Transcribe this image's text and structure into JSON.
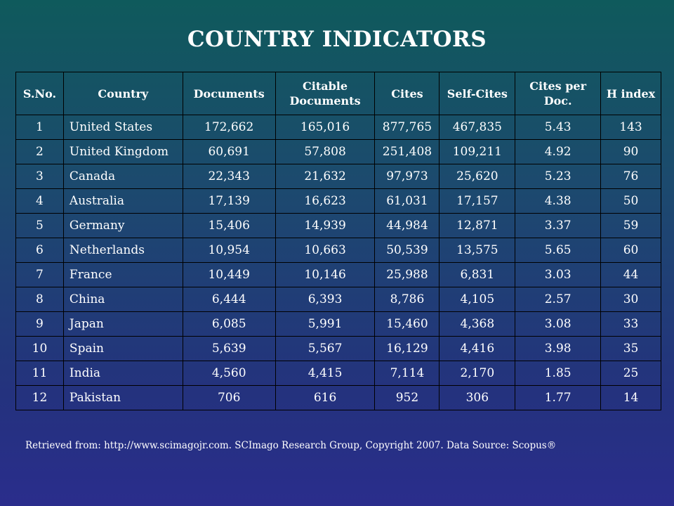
{
  "title": "COUNTRY INDICATORS",
  "table": {
    "headers": [
      "S.No.",
      "Country",
      "Documents",
      "Citable Documents",
      "Cites",
      "Self-Cites",
      "Cites per Doc.",
      "H index"
    ],
    "rows": [
      [
        "1",
        "United States",
        "172,662",
        "165,016",
        "877,765",
        "467,835",
        "5.43",
        "143"
      ],
      [
        "2",
        "United Kingdom",
        "60,691",
        "57,808",
        "251,408",
        "109,211",
        "4.92",
        "90"
      ],
      [
        "3",
        "Canada",
        "22,343",
        "21,632",
        "97,973",
        "25,620",
        "5.23",
        "76"
      ],
      [
        "4",
        "Australia",
        "17,139",
        "16,623",
        "61,031",
        "17,157",
        "4.38",
        "50"
      ],
      [
        "5",
        "Germany",
        "15,406",
        "14,939",
        "44,984",
        "12,871",
        "3.37",
        "59"
      ],
      [
        "6",
        "Netherlands",
        "10,954",
        "10,663",
        "50,539",
        "13,575",
        "5.65",
        "60"
      ],
      [
        "7",
        "France",
        "10,449",
        "10,146",
        "25,988",
        "6,831",
        "3.03",
        "44"
      ],
      [
        "8",
        "China",
        "6,444",
        "6,393",
        "8,786",
        "4,105",
        "2.57",
        "30"
      ],
      [
        "9",
        "Japan",
        "6,085",
        "5,991",
        "15,460",
        "4,368",
        "3.08",
        "33"
      ],
      [
        "10",
        "Spain",
        "5,639",
        "5,567",
        "16,129",
        "4,416",
        "3.98",
        "35"
      ],
      [
        "11",
        "India",
        "4,560",
        "4,415",
        "7,114",
        "2,170",
        "1.85",
        "25"
      ],
      [
        "12",
        "Pakistan",
        "706",
        "616",
        "952",
        "306",
        "1.77",
        "14"
      ]
    ]
  },
  "footer": "Retrieved from: http://www.scimagojr.com. SCImago Research Group, Copyright 2007. Data Source: Scopus®"
}
